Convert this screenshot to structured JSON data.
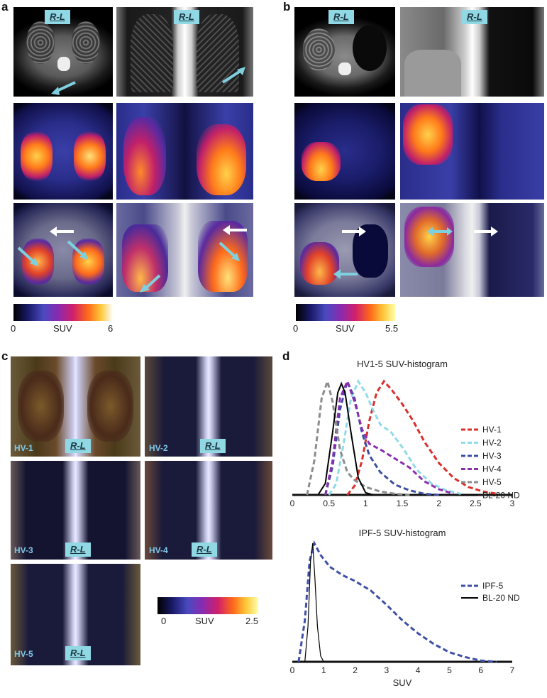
{
  "panels": {
    "a": {
      "label": "a",
      "orientation_label": "R-L",
      "colorbar": {
        "min": "0",
        "mid": "SUV",
        "max": "6"
      }
    },
    "b": {
      "label": "b",
      "orientation_label": "R-L",
      "colorbar": {
        "min": "0",
        "mid": "SUV",
        "max": "5.5"
      }
    },
    "c": {
      "label": "c",
      "orientation_label": "R-L",
      "tiles": [
        "HV-1",
        "HV-2",
        "HV-3",
        "HV-4",
        "HV-5"
      ],
      "colorbar": {
        "min": "0",
        "mid": "SUV",
        "max": "2.5"
      }
    },
    "d": {
      "label": "d"
    }
  },
  "colors": {
    "HV-1": "#d9302c",
    "HV-2": "#8fdbe6",
    "HV-3": "#3c4fa0",
    "HV-4": "#8a2fb0",
    "HV-5": "#8c8c8c",
    "BL-20 ND": "#000000",
    "IPF-5": "#3e4fa6",
    "cyan_box": "#8fd8e4"
  },
  "chart_data": [
    {
      "type": "line",
      "title": "HV1-5 SUV-histogram",
      "xlabel": "",
      "ylabel": "",
      "xlim": [
        0,
        3
      ],
      "xticks": [
        "0",
        "0.5",
        "1",
        "1.5",
        "2",
        "2.5",
        "3"
      ],
      "legend_position": "right",
      "series": [
        {
          "name": "HV-1",
          "peak": 1.25,
          "x": [
            0.75,
            0.85,
            0.95,
            1.05,
            1.15,
            1.25,
            1.35,
            1.5,
            1.65,
            1.8,
            2.0,
            2.2,
            2.4,
            2.6,
            2.8
          ],
          "y": [
            0.0,
            0.08,
            0.3,
            0.65,
            0.9,
            1.0,
            0.93,
            0.8,
            0.65,
            0.47,
            0.28,
            0.15,
            0.07,
            0.03,
            0.01
          ]
        },
        {
          "name": "HV-2",
          "peak": 0.9,
          "x": [
            0.5,
            0.6,
            0.7,
            0.8,
            0.9,
            1.0,
            1.1,
            1.2,
            1.35,
            1.5,
            1.7,
            1.9,
            2.1,
            2.3
          ],
          "y": [
            0.0,
            0.1,
            0.45,
            0.85,
            1.0,
            0.9,
            0.75,
            0.62,
            0.55,
            0.42,
            0.22,
            0.1,
            0.04,
            0.01
          ]
        },
        {
          "name": "HV-3",
          "peak": 0.75,
          "x": [
            0.45,
            0.55,
            0.65,
            0.75,
            0.85,
            0.95,
            1.05,
            1.2,
            1.4,
            1.6,
            1.8,
            2.0
          ],
          "y": [
            0.0,
            0.25,
            0.75,
            1.0,
            0.85,
            0.55,
            0.35,
            0.2,
            0.09,
            0.04,
            0.01,
            0.0
          ]
        },
        {
          "name": "HV-4",
          "peak": 0.75,
          "x": [
            0.45,
            0.55,
            0.65,
            0.75,
            0.85,
            0.95,
            1.05,
            1.2,
            1.4,
            1.6,
            1.8,
            2.0,
            2.2
          ],
          "y": [
            0.0,
            0.3,
            0.85,
            1.0,
            0.82,
            0.58,
            0.45,
            0.4,
            0.32,
            0.24,
            0.12,
            0.05,
            0.01
          ]
        },
        {
          "name": "HV-5",
          "peak": 0.48,
          "x": [
            0.2,
            0.3,
            0.4,
            0.48,
            0.55,
            0.65,
            0.75,
            0.85,
            1.0,
            1.2,
            1.4,
            1.6
          ],
          "y": [
            0.0,
            0.3,
            0.85,
            1.0,
            0.82,
            0.4,
            0.2,
            0.13,
            0.07,
            0.03,
            0.01,
            0.0
          ]
        },
        {
          "name": "BL-20 ND",
          "peak": 0.67,
          "x": [
            0.35,
            0.45,
            0.55,
            0.62,
            0.67,
            0.72,
            0.8,
            0.9,
            1.0,
            1.1
          ],
          "y": [
            0.0,
            0.1,
            0.55,
            0.9,
            0.98,
            0.9,
            0.55,
            0.15,
            0.02,
            0.0
          ]
        }
      ]
    },
    {
      "type": "line",
      "title": "IPF-5 SUV-histogram",
      "xlabel": "SUV",
      "ylabel": "",
      "xlim": [
        0,
        7
      ],
      "xticks": [
        "0",
        "1",
        "2",
        "3",
        "4",
        "5",
        "6",
        "7"
      ],
      "legend_position": "right",
      "series": [
        {
          "name": "IPF-5",
          "peak": 0.7,
          "x": [
            0.2,
            0.4,
            0.55,
            0.7,
            0.9,
            1.2,
            1.6,
            2.0,
            2.5,
            3.0,
            3.5,
            4.0,
            4.5,
            5.0,
            5.5,
            6.0,
            6.5
          ],
          "y": [
            0.0,
            0.35,
            0.85,
            1.0,
            0.9,
            0.8,
            0.73,
            0.68,
            0.6,
            0.48,
            0.35,
            0.24,
            0.15,
            0.08,
            0.04,
            0.01,
            0.0
          ]
        },
        {
          "name": "BL-20 ND",
          "peak": 0.65,
          "x": [
            0.4,
            0.5,
            0.58,
            0.65,
            0.72,
            0.8,
            0.9,
            1.0
          ],
          "y": [
            0.0,
            0.3,
            0.85,
            1.0,
            0.7,
            0.3,
            0.05,
            0.0
          ]
        }
      ]
    }
  ],
  "axis_label_top": "SUV"
}
